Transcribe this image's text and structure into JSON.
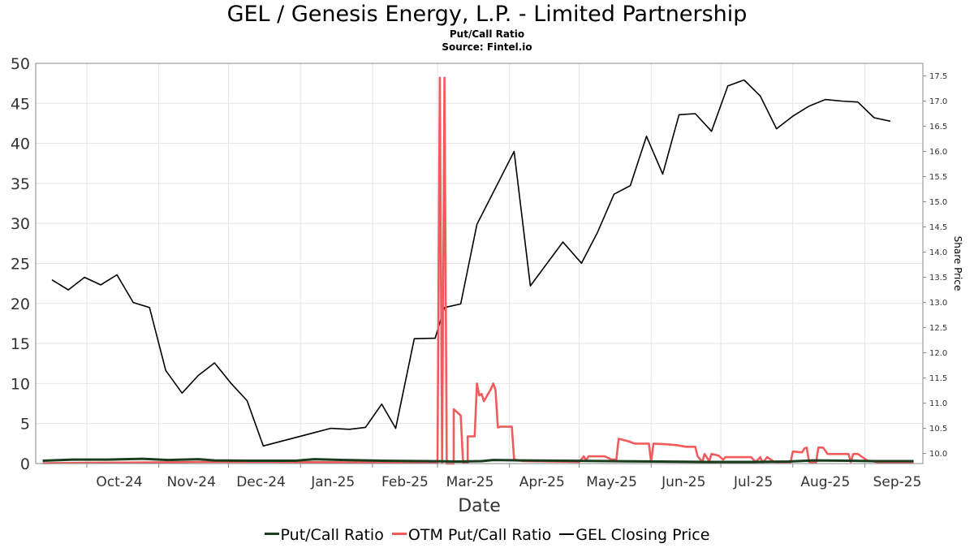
{
  "header": {
    "title": "GEL / Genesis Energy, L.P. - Limited Partnership",
    "subtitle": "Put/Call Ratio",
    "source": "Source: Fintel.io"
  },
  "legend": {
    "items": [
      {
        "label": "Put/Call Ratio",
        "color": "#1a3d1f"
      },
      {
        "label": "OTM Put/Call Ratio",
        "color": "#f25b5b"
      },
      {
        "label": "GEL Closing Price",
        "color": "#000000"
      }
    ]
  },
  "chart_data": {
    "type": "line",
    "title": "GEL / Genesis Energy, L.P. - Limited Partnership",
    "subtitle": "Put/Call Ratio",
    "xlabel": "Date",
    "ylabel": "",
    "y2label": "Share Price",
    "x_ticks": [
      "Oct-24",
      "Nov-24",
      "Dec-24",
      "Jan-25",
      "Feb-25",
      "Mar-25",
      "Apr-25",
      "May-25",
      "Jun-25",
      "Jul-25",
      "Aug-25",
      "Sep-25"
    ],
    "xlim": [
      "2024-09-09",
      "2025-09-26"
    ],
    "ylim": [
      0,
      50
    ],
    "y_ticks": [
      0,
      5,
      10,
      15,
      20,
      25,
      30,
      35,
      40,
      45,
      50
    ],
    "y2lim": [
      9.8,
      17.75
    ],
    "y2_ticks": [
      10.0,
      10.5,
      11.0,
      11.5,
      12.0,
      12.5,
      13.0,
      13.5,
      14.0,
      14.5,
      15.0,
      15.5,
      16.0,
      16.5,
      17.0,
      17.5
    ],
    "grid": true,
    "legend_position": "bottom",
    "series": [
      {
        "name": "GEL Closing Price",
        "axis": "right",
        "color": "#000000",
        "points": [
          [
            "2024-09-16",
            13.45
          ],
          [
            "2024-09-23",
            13.25
          ],
          [
            "2024-09-30",
            13.5
          ],
          [
            "2024-10-07",
            13.35
          ],
          [
            "2024-10-14",
            13.55
          ],
          [
            "2024-10-21",
            13.0
          ],
          [
            "2024-10-28",
            12.9
          ],
          [
            "2024-11-04",
            11.65
          ],
          [
            "2024-11-11",
            11.2
          ],
          [
            "2024-11-18",
            11.55
          ],
          [
            "2024-11-25",
            11.8
          ],
          [
            "2024-12-02",
            11.4
          ],
          [
            "2024-12-09",
            11.05
          ],
          [
            "2024-12-16",
            10.15
          ],
          [
            "2025-01-14",
            10.5
          ],
          [
            "2025-01-22",
            10.48
          ],
          [
            "2025-01-29",
            10.52
          ],
          [
            "2025-02-05",
            10.98
          ],
          [
            "2025-02-11",
            10.5
          ],
          [
            "2025-02-19",
            12.28
          ],
          [
            "2025-02-28",
            12.29
          ],
          [
            "2025-03-04",
            12.9
          ],
          [
            "2025-03-11",
            12.97
          ],
          [
            "2025-03-18",
            14.55
          ],
          [
            "2025-04-03",
            16.0
          ],
          [
            "2025-04-10",
            13.33
          ],
          [
            "2025-04-24",
            14.2
          ],
          [
            "2025-05-02",
            13.78
          ],
          [
            "2025-05-09",
            14.4
          ],
          [
            "2025-05-16",
            15.15
          ],
          [
            "2025-05-23",
            15.32
          ],
          [
            "2025-05-30",
            16.3
          ],
          [
            "2025-06-06",
            15.55
          ],
          [
            "2025-06-13",
            16.73
          ],
          [
            "2025-06-20",
            16.75
          ],
          [
            "2025-06-27",
            16.4
          ],
          [
            "2025-07-04",
            17.3
          ],
          [
            "2025-07-11",
            17.42
          ],
          [
            "2025-07-18",
            17.1
          ],
          [
            "2025-07-25",
            16.45
          ],
          [
            "2025-08-01",
            16.7
          ],
          [
            "2025-08-08",
            16.9
          ],
          [
            "2025-08-15",
            17.03
          ],
          [
            "2025-08-22",
            17.0
          ],
          [
            "2025-08-29",
            16.98
          ],
          [
            "2025-09-05",
            16.67
          ],
          [
            "2025-09-12",
            16.6
          ]
        ]
      },
      {
        "name": "OTM Put/Call Ratio",
        "axis": "left",
        "color": "#f25b5b",
        "points": [
          [
            "2024-09-12",
            0.05
          ],
          [
            "2024-10-01",
            0.1
          ],
          [
            "2024-10-28",
            0.15
          ],
          [
            "2024-11-20",
            0.2
          ],
          [
            "2024-12-20",
            0.2
          ],
          [
            "2025-02-28",
            0.1
          ],
          [
            "2025-03-01",
            0.1
          ],
          [
            "2025-03-02",
            48.2
          ],
          [
            "2025-03-03",
            0.1
          ],
          [
            "2025-03-04",
            48.2
          ],
          [
            "2025-03-05",
            0.0
          ],
          [
            "2025-03-08",
            0.0
          ],
          [
            "2025-03-08",
            6.8
          ],
          [
            "2025-03-11",
            6.0
          ],
          [
            "2025-03-12",
            0.1
          ],
          [
            "2025-03-14",
            0.1
          ],
          [
            "2025-03-14",
            3.4
          ],
          [
            "2025-03-17",
            3.4
          ],
          [
            "2025-03-18",
            10.0
          ],
          [
            "2025-03-19",
            8.5
          ],
          [
            "2025-03-20",
            8.7
          ],
          [
            "2025-03-21",
            7.8
          ],
          [
            "2025-03-24",
            9.3
          ],
          [
            "2025-03-25",
            10.0
          ],
          [
            "2025-03-26",
            9.2
          ],
          [
            "2025-03-27",
            4.5
          ],
          [
            "2025-03-28",
            4.6
          ],
          [
            "2025-04-02",
            4.6
          ],
          [
            "2025-04-03",
            0.5
          ],
          [
            "2025-04-07",
            0.3
          ],
          [
            "2025-05-01",
            0.2
          ],
          [
            "2025-05-03",
            0.9
          ],
          [
            "2025-05-04",
            0.4
          ],
          [
            "2025-05-05",
            0.9
          ],
          [
            "2025-05-12",
            0.9
          ],
          [
            "2025-05-15",
            0.5
          ],
          [
            "2025-05-17",
            0.5
          ],
          [
            "2025-05-18",
            3.1
          ],
          [
            "2025-05-22",
            2.8
          ],
          [
            "2025-05-25",
            2.5
          ],
          [
            "2025-05-31",
            2.5
          ],
          [
            "2025-06-01",
            0.2
          ],
          [
            "2025-06-02",
            2.5
          ],
          [
            "2025-06-08",
            2.4
          ],
          [
            "2025-06-12",
            2.3
          ],
          [
            "2025-06-16",
            2.1
          ],
          [
            "2025-06-20",
            2.1
          ],
          [
            "2025-06-21",
            0.9
          ],
          [
            "2025-06-23",
            0.2
          ],
          [
            "2025-06-24",
            1.2
          ],
          [
            "2025-06-26",
            0.3
          ],
          [
            "2025-06-27",
            1.2
          ],
          [
            "2025-06-30",
            1.0
          ],
          [
            "2025-07-02",
            0.5
          ],
          [
            "2025-07-03",
            0.8
          ],
          [
            "2025-07-14",
            0.8
          ],
          [
            "2025-07-16",
            0.2
          ],
          [
            "2025-07-18",
            0.8
          ],
          [
            "2025-07-19",
            0.1
          ],
          [
            "2025-07-21",
            0.8
          ],
          [
            "2025-07-24",
            0.2
          ],
          [
            "2025-07-28",
            0.1
          ],
          [
            "2025-07-31",
            0.1
          ],
          [
            "2025-08-01",
            1.5
          ],
          [
            "2025-08-05",
            1.4
          ],
          [
            "2025-08-06",
            1.9
          ],
          [
            "2025-08-07",
            2.0
          ],
          [
            "2025-08-08",
            0.2
          ],
          [
            "2025-08-11",
            0.1
          ],
          [
            "2025-08-12",
            2.0
          ],
          [
            "2025-08-14",
            2.0
          ],
          [
            "2025-08-16",
            1.2
          ],
          [
            "2025-08-25",
            1.2
          ],
          [
            "2025-08-26",
            0.2
          ],
          [
            "2025-08-27",
            1.2
          ],
          [
            "2025-08-29",
            1.2
          ],
          [
            "2025-09-02",
            0.4
          ],
          [
            "2025-09-08",
            0.1
          ],
          [
            "2025-09-22",
            0.1
          ]
        ]
      },
      {
        "name": "Put/Call Ratio",
        "axis": "left",
        "color": "#1a3d1f",
        "points": [
          [
            "2024-09-12",
            0.35
          ],
          [
            "2024-09-25",
            0.5
          ],
          [
            "2024-10-10",
            0.5
          ],
          [
            "2024-10-25",
            0.6
          ],
          [
            "2024-11-05",
            0.45
          ],
          [
            "2024-11-18",
            0.55
          ],
          [
            "2024-11-25",
            0.4
          ],
          [
            "2024-12-10",
            0.35
          ],
          [
            "2024-12-30",
            0.35
          ],
          [
            "2025-01-07",
            0.55
          ],
          [
            "2025-01-20",
            0.45
          ],
          [
            "2025-02-05",
            0.35
          ],
          [
            "2025-02-25",
            0.3
          ],
          [
            "2025-03-10",
            0.25
          ],
          [
            "2025-03-20",
            0.3
          ],
          [
            "2025-03-25",
            0.45
          ],
          [
            "2025-04-05",
            0.4
          ],
          [
            "2025-04-25",
            0.35
          ],
          [
            "2025-05-15",
            0.3
          ],
          [
            "2025-06-05",
            0.25
          ],
          [
            "2025-06-25",
            0.2
          ],
          [
            "2025-07-15",
            0.2
          ],
          [
            "2025-07-30",
            0.25
          ],
          [
            "2025-08-10",
            0.4
          ],
          [
            "2025-08-25",
            0.35
          ],
          [
            "2025-09-05",
            0.3
          ],
          [
            "2025-09-22",
            0.3
          ]
        ]
      }
    ]
  }
}
